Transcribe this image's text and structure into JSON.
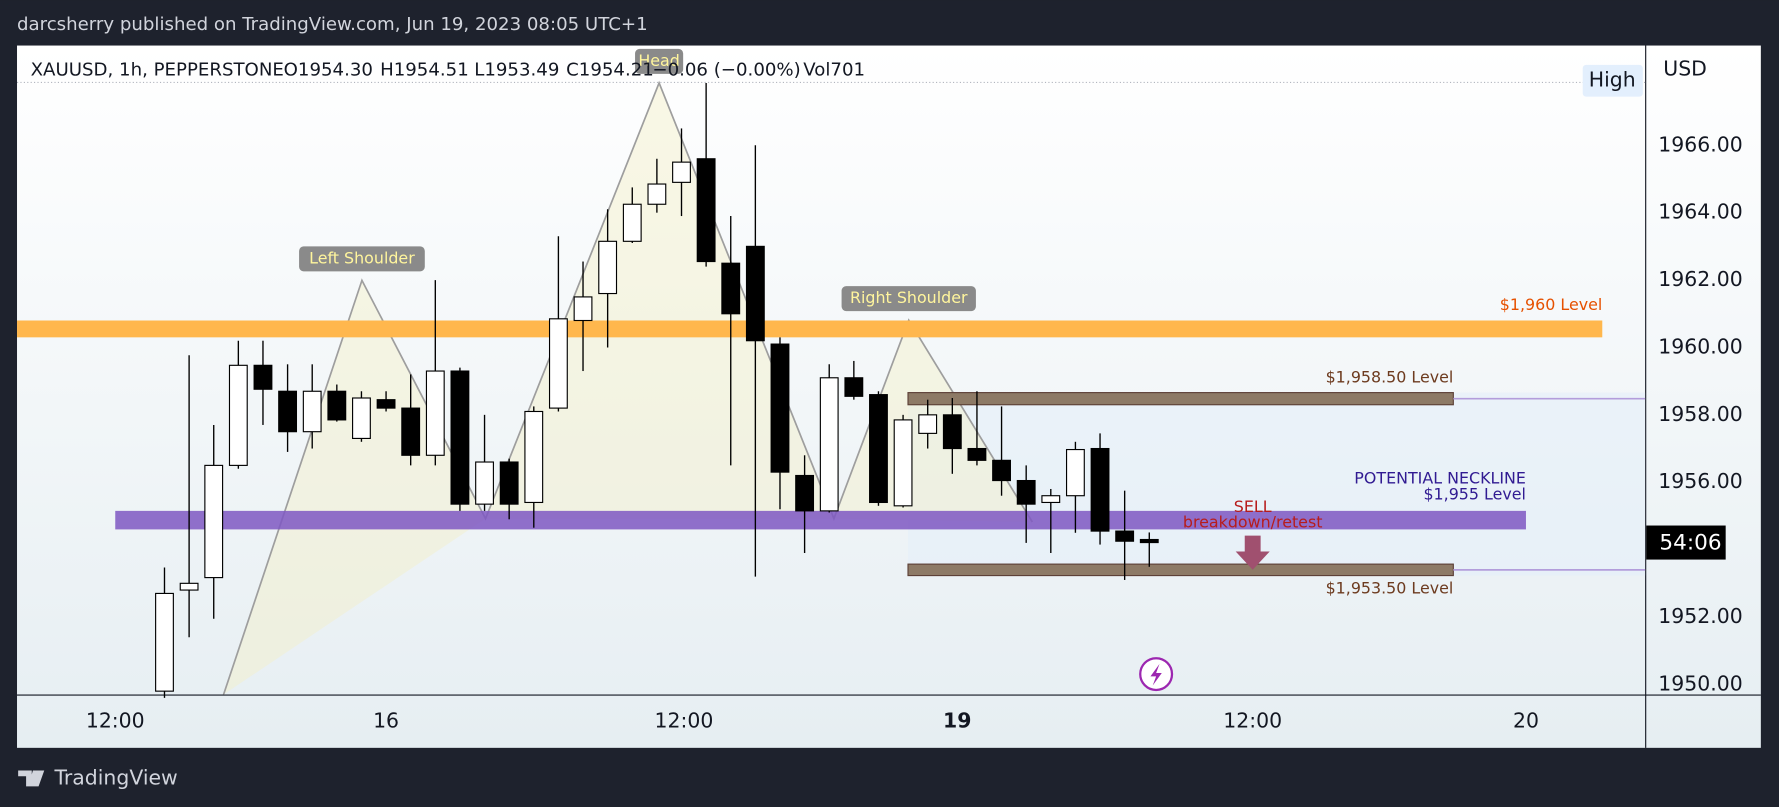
{
  "header": {
    "title": "darcsherry published on TradingView.com, Jun 19, 2023 08:05 UTC+1"
  },
  "footer": {
    "brand": "TradingView"
  },
  "chart_data": {
    "type": "candlestick",
    "legend": [
      "XAUUSD, 1h, PEPPERSTONE",
      "O1954.30",
      "H1954.51",
      "L1953.49",
      "C1954.21",
      "−0.06 (−0.00%)",
      "Vol701"
    ],
    "currency": "USD",
    "badge": "High",
    "countdown": "54:06",
    "x": [
      0,
      1,
      2,
      3,
      4,
      5,
      6,
      7,
      8,
      9,
      10,
      11,
      12,
      13,
      14,
      15,
      16,
      17,
      18,
      19,
      20,
      21,
      22,
      23,
      24,
      25,
      26,
      27,
      28,
      29,
      30,
      31,
      32,
      33,
      34,
      35,
      36,
      37,
      38,
      39,
      40
    ],
    "open": [
      1949.8,
      1952.8,
      1953.17,
      1956.5,
      1959.47,
      1958.7,
      1957.5,
      1958.7,
      1957.3,
      1958.45,
      1958.2,
      1956.8,
      1959.3,
      1955.35,
      1956.6,
      1955.4,
      1958.2,
      1960.8,
      1961.6,
      1963.15,
      1964.25,
      1964.9,
      1965.6,
      1962.5,
      1963.0,
      1960.1,
      1956.2,
      1955.15,
      1959.1,
      1958.6,
      1955.3,
      1957.45,
      1958.0,
      1957.0,
      1956.65,
      1956.05,
      1955.4,
      1955.6,
      1957.0,
      1954.55,
      1954.3
    ],
    "high": [
      1953.47,
      1959.77,
      1957.7,
      1960.2,
      1960.2,
      1959.5,
      1959.5,
      1958.9,
      1958.7,
      1958.7,
      1959.2,
      1962.0,
      1959.4,
      1958.0,
      1956.7,
      1958.25,
      1963.3,
      1962.55,
      1964.1,
      1964.75,
      1965.6,
      1966.5,
      1967.85,
      1963.9,
      1966.0,
      1960.3,
      1956.8,
      1959.5,
      1959.6,
      1958.7,
      1958.0,
      1958.45,
      1958.5,
      1958.7,
      1958.25,
      1956.5,
      1955.8,
      1957.2,
      1957.45,
      1955.75,
      1954.51
    ],
    "low": [
      1949.6,
      1951.4,
      1951.95,
      1956.4,
      1957.7,
      1956.9,
      1957.0,
      1957.8,
      1957.2,
      1958.1,
      1956.5,
      1956.5,
      1955.15,
      1955.15,
      1954.9,
      1954.65,
      1958.1,
      1959.3,
      1960.0,
      1963.1,
      1964.0,
      1963.9,
      1962.4,
      1956.5,
      1953.2,
      1955.2,
      1953.9,
      1955.1,
      1958.45,
      1955.3,
      1955.25,
      1957.0,
      1956.25,
      1956.5,
      1955.6,
      1954.2,
      1953.9,
      1954.5,
      1954.15,
      1953.1,
      1953.49
    ],
    "close": [
      1952.7,
      1953.0,
      1956.5,
      1959.47,
      1958.76,
      1957.5,
      1958.7,
      1957.85,
      1958.5,
      1958.2,
      1956.8,
      1959.3,
      1955.35,
      1956.6,
      1955.35,
      1958.1,
      1960.85,
      1961.5,
      1963.15,
      1964.25,
      1964.85,
      1965.5,
      1962.55,
      1961.0,
      1960.2,
      1956.3,
      1955.15,
      1959.1,
      1958.55,
      1955.4,
      1957.85,
      1958.0,
      1957.0,
      1956.65,
      1956.05,
      1955.35,
      1955.6,
      1956.97,
      1954.55,
      1954.25,
      1954.21
    ],
    "up_color": "#ffffff",
    "down_color": "#000000",
    "wick_color": "#000000",
    "xlim": [
      -5.99,
      60.14
    ],
    "xticks": [
      {
        "value": -2,
        "label": "12:00"
      },
      {
        "value": 9,
        "label": "16"
      },
      {
        "value": 21.1,
        "label": "12:00"
      },
      {
        "value": 32.2,
        "label": "19"
      },
      {
        "value": 44.2,
        "label": "12:00"
      },
      {
        "value": 55.3,
        "label": "20"
      }
    ],
    "ylim": [
      1949.7,
      1968.96
    ],
    "yticks": [
      {
        "value": 1950,
        "label": "1950.00"
      },
      {
        "value": 1952,
        "label": "1952.00"
      },
      {
        "value": 1956,
        "label": "1956.00"
      },
      {
        "value": 1958,
        "label": "1958.00"
      },
      {
        "value": 1960,
        "label": "1960.00"
      },
      {
        "value": 1962,
        "label": "1962.00"
      },
      {
        "value": 1964,
        "label": "1964.00"
      },
      {
        "value": 1966,
        "label": "1966.00"
      }
    ],
    "grid": false,
    "levels": [
      {
        "label": "$1,960 Level",
        "top": 1960.8,
        "bottom": 1960.3,
        "start": -5.99,
        "end": 58.4,
        "color": "#ffb74d",
        "text_color": "#e65100"
      },
      {
        "label": "$1,958.50 Level",
        "top": 1958.66,
        "bottom": 1958.3,
        "start": 30.2,
        "end": 52.35,
        "color": "#8d7a66",
        "text_color": "#6d3b1f"
      },
      {
        "label": "$1,953.50 Level",
        "top": 1953.57,
        "bottom": 1953.23,
        "start": 30.2,
        "end": 52.35,
        "color": "#8d7a66",
        "text_color": "#6d3b1f"
      }
    ],
    "neckline": {
      "lines": [
        "POTENTIAL NECKLINE",
        "$1,955 Level"
      ],
      "top": 1955.15,
      "bottom": 1954.6,
      "start": -2,
      "end": 55.3,
      "color": "#7e57c2",
      "text_color": "#311b92"
    },
    "signal": {
      "lines": [
        "SELL",
        "breakdown/retest"
      ],
      "x": 44.2,
      "color": "#a0506f",
      "text_color": "#b71c1c"
    },
    "pattern": {
      "points": [
        [
          2.4,
          1949.7
        ],
        [
          8.02,
          1961.99
        ],
        [
          13.04,
          1954.92
        ],
        [
          20.09,
          1967.85
        ],
        [
          27.19,
          1954.92
        ],
        [
          30.23,
          1960.81
        ],
        [
          35.25,
          1954.82
        ]
      ],
      "labels": [
        "Left Shoulder",
        "Head",
        "Right Shoulder"
      ],
      "color": "#9e9e9e"
    }
  }
}
